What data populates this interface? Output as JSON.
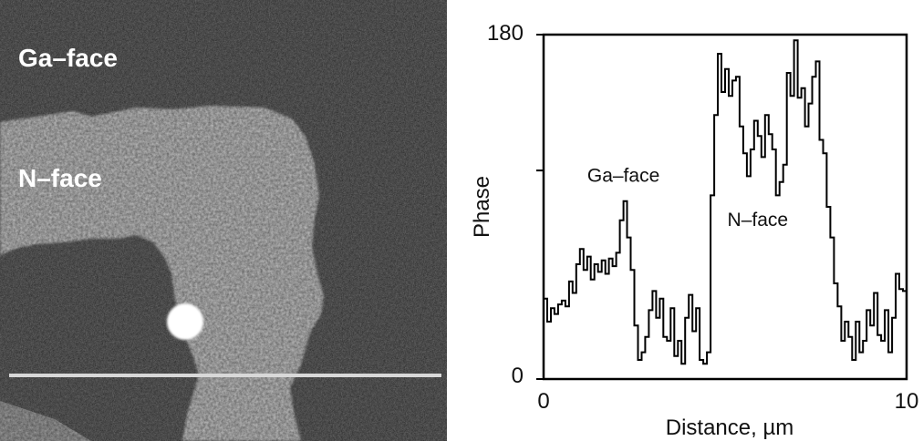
{
  "image_panel": {
    "ga_label": "Ga–face",
    "n_label": "N–face"
  },
  "chart_data": {
    "type": "line",
    "xlabel": "Distance, µm",
    "ylabel": "Phase",
    "xlim": [
      0,
      10
    ],
    "ylim": [
      0,
      180
    ],
    "xticks": [
      "0",
      "10"
    ],
    "yticks": [
      "180",
      "0"
    ],
    "grid": false,
    "annotations": [
      {
        "text": "Ga–face",
        "x": 2.2,
        "y": 103
      },
      {
        "text": "N–face",
        "x": 5.9,
        "y": 80
      }
    ],
    "series": [
      {
        "color": "#000000",
        "x": [
          0,
          0.1,
          0.2,
          0.3,
          0.4,
          0.5,
          0.6,
          0.7,
          0.8,
          0.9,
          1.0,
          1.1,
          1.2,
          1.3,
          1.4,
          1.5,
          1.6,
          1.7,
          1.8,
          1.9,
          2.0,
          2.1,
          2.2,
          2.3,
          2.4,
          2.5,
          2.6,
          2.7,
          2.8,
          2.9,
          3.0,
          3.1,
          3.2,
          3.3,
          3.4,
          3.5,
          3.6,
          3.7,
          3.8,
          3.9,
          4.0,
          4.1,
          4.2,
          4.3,
          4.4,
          4.5,
          4.6,
          4.7,
          4.8,
          4.9,
          5.0,
          5.1,
          5.2,
          5.3,
          5.4,
          5.5,
          5.6,
          5.7,
          5.8,
          5.9,
          6.0,
          6.1,
          6.2,
          6.3,
          6.4,
          6.5,
          6.6,
          6.7,
          6.8,
          6.9,
          7.0,
          7.1,
          7.2,
          7.3,
          7.4,
          7.5,
          7.6,
          7.7,
          7.8,
          7.9,
          8.0,
          8.1,
          8.2,
          8.3,
          8.4,
          8.5,
          8.6,
          8.7,
          8.8,
          8.9,
          9.0,
          9.1,
          9.2,
          9.3,
          9.4,
          9.5,
          9.6,
          9.7,
          9.8,
          9.9,
          10.0
        ],
        "y": [
          42,
          30,
          37,
          34,
          39,
          41,
          38,
          51,
          45,
          60,
          68,
          57,
          64,
          52,
          60,
          56,
          62,
          55,
          63,
          59,
          66,
          83,
          93,
          74,
          57,
          28,
          10,
          14,
          22,
          36,
          46,
          32,
          42,
          22,
          20,
          37,
          12,
          20,
          8,
          32,
          44,
          25,
          37,
          10,
          8,
          14,
          96,
          138,
          170,
          150,
          162,
          148,
          156,
          158,
          132,
          118,
          106,
          120,
          135,
          127,
          116,
          138,
          128,
          120,
          96,
          103,
          112,
          160,
          148,
          177,
          147,
          152,
          132,
          144,
          158,
          166,
          125,
          118,
          90,
          74,
          50,
          38,
          20,
          30,
          22,
          10,
          30,
          14,
          20,
          36,
          28,
          45,
          23,
          20,
          36,
          14,
          32,
          55,
          47,
          46,
          60
        ]
      }
    ]
  }
}
